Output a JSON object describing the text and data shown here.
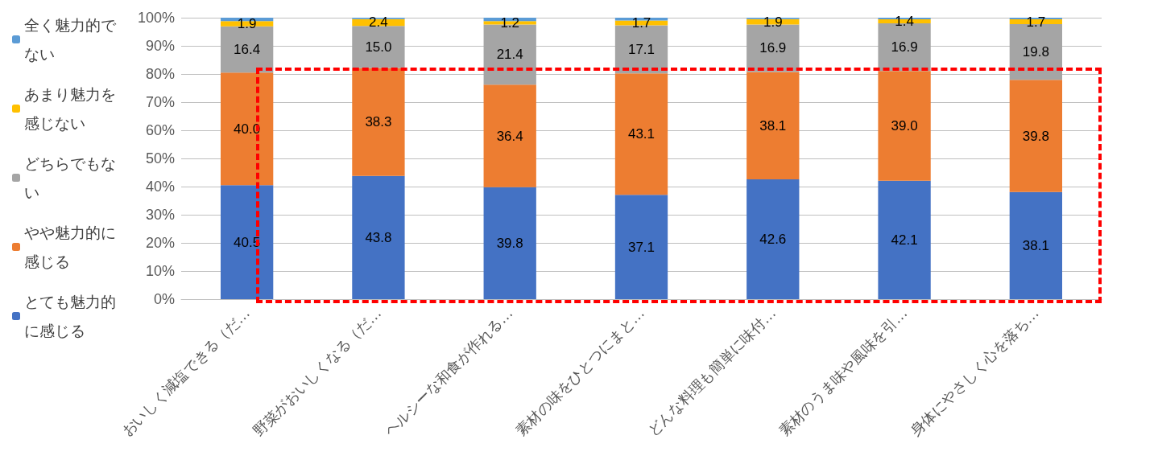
{
  "chart_data": {
    "type": "bar",
    "stacked": true,
    "categories": [
      "おいしく減塩できる（だ…",
      "野菜がおいしくなる（だ…",
      "ヘルシーな和食が作れる…",
      "素材の味をひとつにまと…",
      "どんな料理も簡単に味付…",
      "素材のうま味や風味を引…",
      "身体にやさしく心を落ち…"
    ],
    "series": [
      {
        "name": "とても魅力的に感じる",
        "color": "#4472c4",
        "values": [
          40.5,
          43.8,
          39.8,
          37.1,
          42.6,
          42.1,
          38.1
        ],
        "value_labels": [
          "40.5",
          "43.8",
          "39.8",
          "37.1",
          "42.6",
          "42.1",
          "38.1"
        ]
      },
      {
        "name": "やや魅力的に感じる",
        "color": "#ed7d31",
        "values": [
          40.0,
          38.3,
          36.4,
          43.1,
          38.1,
          39.0,
          39.8
        ],
        "value_labels": [
          "40.0",
          "38.3",
          "36.4",
          "43.1",
          "38.1",
          "39.0",
          "39.8"
        ]
      },
      {
        "name": "どちらでもない",
        "color": "#a5a5a5",
        "values": [
          16.4,
          15.0,
          21.4,
          17.1,
          16.9,
          16.9,
          19.8
        ],
        "value_labels": [
          "16.4",
          "15.0",
          "21.4",
          "17.1",
          "16.9",
          "16.9",
          "19.8"
        ]
      },
      {
        "name": "あまり魅力を感じない",
        "color": "#ffc000",
        "values": [
          1.9,
          2.4,
          1.2,
          1.7,
          1.9,
          1.4,
          1.7
        ],
        "value_labels": [
          "1.9",
          "2.4",
          "1.2",
          "1.7",
          "1.9",
          "1.4",
          "1.7"
        ]
      },
      {
        "name": "全く魅力的でない",
        "color": "#5b9bd5",
        "values": [
          1.2,
          0.5,
          1.2,
          1.0,
          0.5,
          0.6,
          0.6
        ],
        "value_labels": [
          null,
          null,
          null,
          null,
          null,
          null,
          null
        ]
      }
    ],
    "ylim": [
      0,
      100
    ],
    "yticks": [
      {
        "value": 0,
        "label": "0%"
      },
      {
        "value": 10,
        "label": "10%"
      },
      {
        "value": 20,
        "label": "20%"
      },
      {
        "value": 30,
        "label": "30%"
      },
      {
        "value": 40,
        "label": "40%"
      },
      {
        "value": 50,
        "label": "50%"
      },
      {
        "value": 60,
        "label": "60%"
      },
      {
        "value": 70,
        "label": "70%"
      },
      {
        "value": 80,
        "label": "80%"
      },
      {
        "value": 90,
        "label": "90%"
      },
      {
        "value": 100,
        "label": "100%"
      }
    ],
    "grid": "y",
    "legend": "left"
  }
}
